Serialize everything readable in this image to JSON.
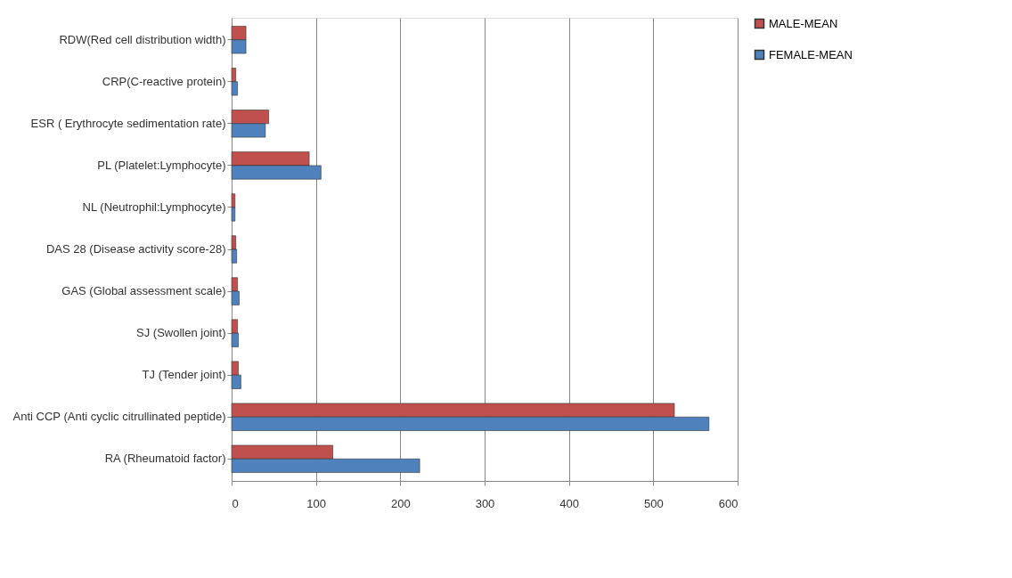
{
  "chart_data": {
    "type": "bar",
    "orientation": "horizontal",
    "categories": [
      "RDW(Red cell distribution width)",
      "CRP(C-reactive protein)",
      "ESR ( Erythrocyte sedimentation rate)",
      "PL (Platelet:Lymphocyte)",
      "NL (Neutrophil:Lymphocyte)",
      "DAS 28 (Disease activity score-28)",
      "GAS (Global assessment scale)",
      "SJ (Swollen joint)",
      "TJ (Tender joint)",
      "Anti  CCP (Anti cyclic citrullinated peptide)",
      "RA (Rheumatoid factor)"
    ],
    "series": [
      {
        "name": "MALE-MEAN",
        "color": "#c0504d",
        "values": [
          17,
          5,
          44,
          92,
          4,
          5,
          7,
          7,
          8,
          525,
          120
        ]
      },
      {
        "name": "FEMALE-MEAN",
        "color": "#4f81bd",
        "values": [
          17,
          7,
          40,
          106,
          4,
          6,
          9,
          8,
          11,
          566,
          223
        ]
      }
    ],
    "xlim": [
      0,
      600
    ],
    "xticks": [
      0,
      100,
      200,
      300,
      400,
      500,
      600
    ],
    "grid": "x",
    "legend": "right"
  }
}
